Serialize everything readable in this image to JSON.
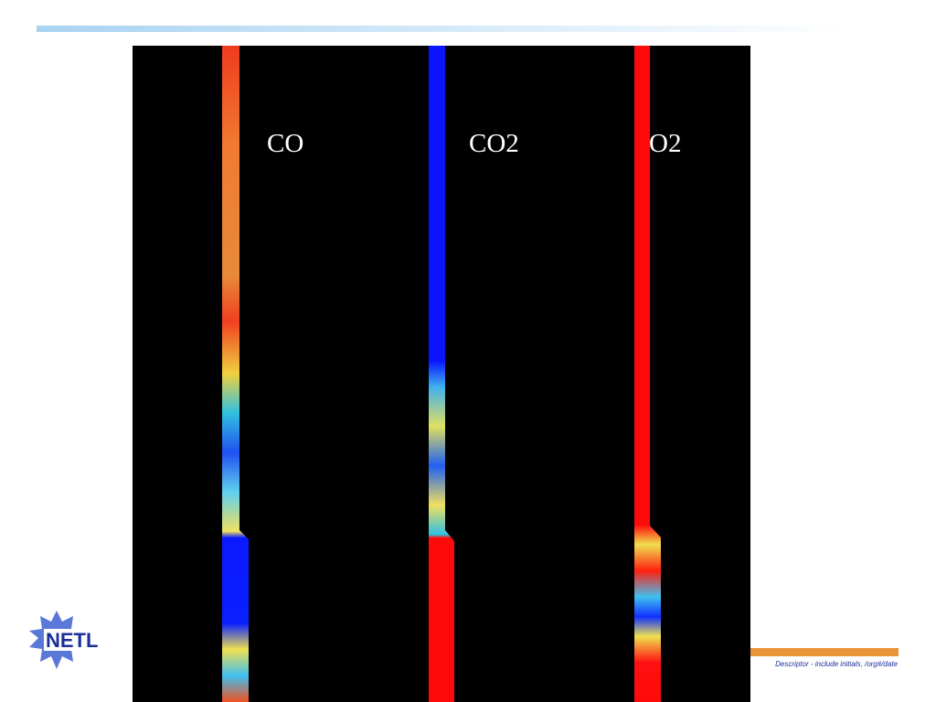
{
  "slide": {
    "labels": [
      "CO",
      "CO2",
      "O2"
    ],
    "logo": "NETL",
    "footer": "Descriptor - include initials, /org#/date"
  }
}
